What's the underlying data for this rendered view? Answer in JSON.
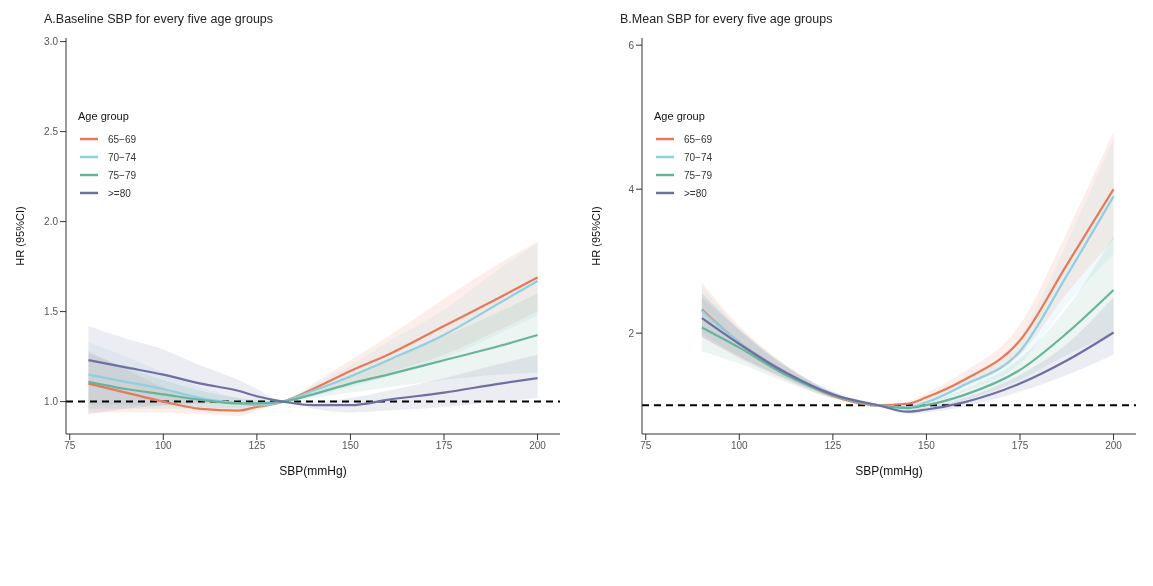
{
  "chart_data": [
    {
      "type": "line",
      "title": "A.Baseline SBP for every five age groups",
      "xlabel": "SBP(mmHg)",
      "ylabel": "HR (95%CI)",
      "legend_title": "Age group",
      "legend": "top left",
      "grid": false,
      "x": [
        80,
        90,
        100,
        110,
        120,
        125,
        132,
        140,
        150,
        160,
        175,
        190,
        200
      ],
      "xlim": [
        74,
        206
      ],
      "xticks": [
        75,
        100,
        125,
        150,
        175,
        200
      ],
      "ylim": [
        0.82,
        3.02
      ],
      "yticks": [
        {
          "value": 1,
          "label": "1.0"
        },
        1.5,
        {
          "value": 2,
          "label": "2.0"
        },
        2.5,
        {
          "value": 3,
          "label": "3.0"
        }
      ],
      "ref_lines": [
        {
          "axis": "y",
          "value": 1,
          "color": "#000000",
          "line_style": "dashed"
        }
      ],
      "series": [
        {
          "name": "65−69",
          "color": "#e8785a",
          "values": [
            1.1,
            1.05,
            1.0,
            0.96,
            0.95,
            0.97,
            1.0,
            1.07,
            1.17,
            1.26,
            1.42,
            1.58,
            1.69
          ],
          "lower": [
            0.94,
            0.94,
            0.94,
            0.93,
            0.92,
            0.95,
            1.0,
            1.04,
            1.1,
            1.16,
            1.26,
            1.4,
            1.5
          ],
          "upper": [
            1.28,
            1.18,
            1.08,
            1.01,
            0.98,
            0.99,
            1.0,
            1.1,
            1.23,
            1.36,
            1.57,
            1.77,
            1.89
          ]
        },
        {
          "name": "70−74",
          "color": "#8ecfe0",
          "values": [
            1.15,
            1.11,
            1.07,
            1.02,
            0.99,
            0.98,
            1.0,
            1.06,
            1.14,
            1.23,
            1.37,
            1.55,
            1.67
          ],
          "lower": [
            0.98,
            0.98,
            0.98,
            0.97,
            0.96,
            0.96,
            1.0,
            1.03,
            1.08,
            1.14,
            1.24,
            1.38,
            1.48
          ],
          "upper": [
            1.33,
            1.25,
            1.16,
            1.08,
            1.02,
            1.0,
            1.0,
            1.09,
            1.2,
            1.33,
            1.51,
            1.74,
            1.88
          ]
        },
        {
          "name": "75−79",
          "color": "#69b39a",
          "values": [
            1.11,
            1.07,
            1.04,
            1.01,
            0.99,
            0.99,
            1.0,
            1.04,
            1.1,
            1.15,
            1.23,
            1.31,
            1.37
          ],
          "lower": [
            0.96,
            0.96,
            0.96,
            0.96,
            0.96,
            0.97,
            1.0,
            1.02,
            1.05,
            1.08,
            1.12,
            1.15,
            1.16
          ],
          "upper": [
            1.27,
            1.19,
            1.12,
            1.06,
            1.02,
            1.01,
            1.0,
            1.06,
            1.15,
            1.23,
            1.36,
            1.5,
            1.6
          ]
        },
        {
          "name": ">=80",
          "color": "#6f6fa3",
          "values": [
            1.23,
            1.19,
            1.15,
            1.1,
            1.06,
            1.03,
            1.0,
            0.98,
            0.98,
            1.01,
            1.05,
            1.1,
            1.13
          ],
          "lower": [
            0.93,
            0.96,
            0.98,
            0.99,
            0.99,
            0.99,
            1.0,
            0.96,
            0.94,
            0.95,
            0.97,
            1.0,
            1.02
          ],
          "upper": [
            1.42,
            1.35,
            1.29,
            1.2,
            1.12,
            1.07,
            1.0,
            1.0,
            1.02,
            1.06,
            1.13,
            1.21,
            1.26
          ]
        }
      ]
    },
    {
      "type": "line",
      "title": "B.Mean SBP for every five age groups",
      "xlabel": "SBP(mmHg)",
      "ylabel": "HR (95%CI)",
      "legend_title": "Age group",
      "legend": "top left",
      "grid": false,
      "x": [
        90,
        100,
        112.5,
        125,
        137,
        145,
        150,
        160,
        175,
        187.5,
        200
      ],
      "xlim": [
        74,
        206
      ],
      "xticks": [
        75,
        100,
        125,
        150,
        175,
        200
      ],
      "ylim": [
        0.6,
        6.1
      ],
      "yticks": [
        2,
        4,
        6
      ],
      "ref_lines": [
        {
          "axis": "y",
          "value": 1,
          "color": "#000000",
          "line_style": "dashed"
        }
      ],
      "series": [
        {
          "name": "65−69",
          "color": "#e8785a",
          "values": [
            2.33,
            1.87,
            1.45,
            1.13,
            1.0,
            1.02,
            1.11,
            1.35,
            1.9,
            2.95,
            4.0
          ],
          "lower": [
            1.95,
            1.65,
            1.35,
            1.09,
            1.0,
            0.99,
            1.05,
            1.25,
            1.7,
            2.55,
            3.3
          ],
          "upper": [
            2.7,
            2.1,
            1.56,
            1.17,
            1.0,
            1.05,
            1.17,
            1.46,
            2.12,
            3.4,
            4.8
          ]
        },
        {
          "name": "70−74",
          "color": "#8ecfe0",
          "values": [
            2.31,
            1.87,
            1.45,
            1.14,
            1.0,
            0.97,
            1.04,
            1.28,
            1.75,
            2.8,
            3.9
          ],
          "lower": [
            2.0,
            1.68,
            1.36,
            1.1,
            1.0,
            0.94,
            0.99,
            1.19,
            1.58,
            2.4,
            3.1
          ],
          "upper": [
            2.65,
            2.07,
            1.55,
            1.18,
            1.0,
            1.0,
            1.09,
            1.38,
            1.95,
            3.25,
            4.7
          ]
        },
        {
          "name": "75−79",
          "color": "#69b39a",
          "values": [
            2.08,
            1.8,
            1.42,
            1.14,
            1.0,
            0.96,
            1.0,
            1.14,
            1.49,
            2.0,
            2.6
          ],
          "lower": [
            1.75,
            1.58,
            1.32,
            1.1,
            1.0,
            0.93,
            0.96,
            1.07,
            1.35,
            1.7,
            2.0
          ],
          "upper": [
            2.5,
            2.04,
            1.53,
            1.18,
            1.0,
            0.99,
            1.04,
            1.22,
            1.65,
            2.35,
            3.35
          ]
        },
        {
          "name": ">=80",
          "color": "#6f6fa3",
          "values": [
            2.21,
            1.85,
            1.45,
            1.15,
            1.0,
            0.91,
            0.94,
            1.04,
            1.3,
            1.62,
            2.01
          ],
          "lower": [
            1.95,
            1.67,
            1.37,
            1.11,
            1.0,
            0.88,
            0.9,
            0.98,
            1.19,
            1.42,
            1.7
          ],
          "upper": [
            2.55,
            2.05,
            1.54,
            1.19,
            1.0,
            0.94,
            0.98,
            1.1,
            1.42,
            1.85,
            2.5
          ]
        }
      ]
    }
  ]
}
